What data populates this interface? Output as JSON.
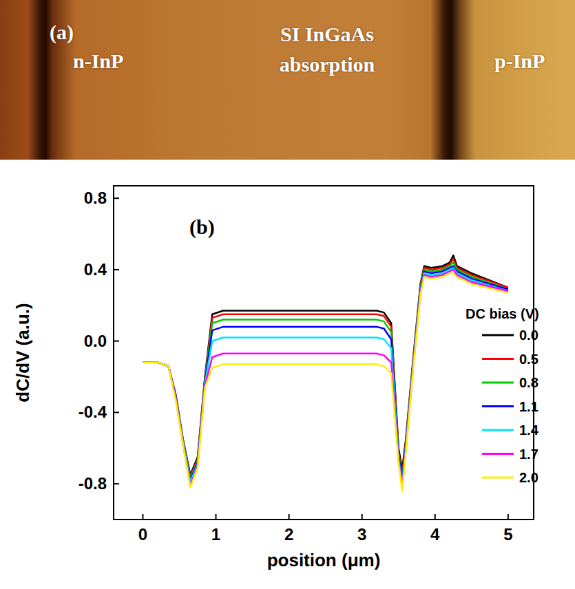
{
  "panel_a": {
    "label": "(a)",
    "regions": [
      "n-InP",
      "SI InGaAs absorption",
      "p-InP"
    ]
  },
  "chart_data": {
    "type": "line",
    "title": "(b)",
    "x_label": "position (μm)",
    "y_label": "dC/dV (a.u.)",
    "legend_title": "DC bias (V)",
    "legend": "right",
    "xlim": [
      -0.4,
      5.35
    ],
    "xticks": [
      0,
      1,
      2,
      3,
      4,
      5
    ],
    "ylim": [
      -1.0,
      0.87
    ],
    "yticks": [
      -0.8,
      -0.4,
      {
        "value": 0,
        "label": "0.0"
      },
      0.4,
      0.8
    ],
    "x": [
      0,
      0.2,
      0.35,
      0.45,
      0.55,
      0.65,
      0.75,
      0.85,
      0.95,
      1.1,
      1.5,
      2.0,
      2.5,
      3.0,
      3.2,
      3.3,
      3.4,
      3.5,
      3.55,
      3.6,
      3.7,
      3.8,
      3.85,
      3.95,
      4.1,
      4.2,
      4.25,
      4.3,
      4.5,
      5.0
    ],
    "series": [
      {
        "name": "0.0",
        "color": "#000000",
        "values": [
          -0.12,
          -0.12,
          -0.14,
          -0.3,
          -0.55,
          -0.75,
          -0.65,
          -0.2,
          0.15,
          0.17,
          0.17,
          0.17,
          0.17,
          0.17,
          0.17,
          0.16,
          0.1,
          -0.6,
          -0.72,
          -0.55,
          -0.1,
          0.32,
          0.42,
          0.41,
          0.42,
          0.44,
          0.48,
          0.42,
          0.38,
          0.3
        ]
      },
      {
        "name": "0.5",
        "color": "#ff0000",
        "values": [
          -0.12,
          -0.12,
          -0.14,
          -0.3,
          -0.56,
          -0.76,
          -0.66,
          -0.21,
          0.13,
          0.15,
          0.15,
          0.15,
          0.15,
          0.15,
          0.15,
          0.14,
          0.08,
          -0.62,
          -0.75,
          -0.57,
          -0.11,
          0.31,
          0.41,
          0.4,
          0.41,
          0.43,
          0.46,
          0.41,
          0.37,
          0.3
        ]
      },
      {
        "name": "0.8",
        "color": "#00cc00",
        "values": [
          -0.12,
          -0.12,
          -0.14,
          -0.31,
          -0.56,
          -0.77,
          -0.67,
          -0.22,
          0.1,
          0.12,
          0.12,
          0.12,
          0.12,
          0.12,
          0.12,
          0.11,
          0.05,
          -0.63,
          -0.77,
          -0.58,
          -0.12,
          0.3,
          0.4,
          0.39,
          0.4,
          0.42,
          0.44,
          0.4,
          0.36,
          0.29
        ]
      },
      {
        "name": "1.1",
        "color": "#0000ff",
        "values": [
          -0.12,
          -0.12,
          -0.14,
          -0.31,
          -0.57,
          -0.78,
          -0.68,
          -0.23,
          0.06,
          0.08,
          0.08,
          0.08,
          0.08,
          0.08,
          0.08,
          0.07,
          0.01,
          -0.64,
          -0.78,
          -0.59,
          -0.13,
          0.29,
          0.39,
          0.38,
          0.39,
          0.41,
          0.42,
          0.39,
          0.35,
          0.29
        ]
      },
      {
        "name": "1.4",
        "color": "#00e5ff",
        "values": [
          -0.12,
          -0.12,
          -0.14,
          -0.32,
          -0.57,
          -0.79,
          -0.69,
          -0.24,
          0.0,
          0.02,
          0.02,
          0.02,
          0.02,
          0.02,
          0.02,
          0.01,
          -0.04,
          -0.66,
          -0.8,
          -0.6,
          -0.14,
          0.28,
          0.38,
          0.37,
          0.38,
          0.4,
          0.41,
          0.38,
          0.34,
          0.28
        ]
      },
      {
        "name": "1.7",
        "color": "#ff00ff",
        "values": [
          -0.12,
          -0.12,
          -0.14,
          -0.32,
          -0.58,
          -0.81,
          -0.7,
          -0.25,
          -0.09,
          -0.07,
          -0.07,
          -0.07,
          -0.07,
          -0.07,
          -0.07,
          -0.08,
          -0.12,
          -0.67,
          -0.82,
          -0.61,
          -0.15,
          0.27,
          0.37,
          0.36,
          0.37,
          0.39,
          0.4,
          0.37,
          0.33,
          0.28
        ]
      },
      {
        "name": "2.0",
        "color": "#ffee00",
        "values": [
          -0.12,
          -0.12,
          -0.14,
          -0.33,
          -0.58,
          -0.82,
          -0.71,
          -0.26,
          -0.15,
          -0.13,
          -0.13,
          -0.13,
          -0.13,
          -0.13,
          -0.13,
          -0.14,
          -0.18,
          -0.68,
          -0.84,
          -0.62,
          -0.16,
          0.26,
          0.36,
          0.35,
          0.36,
          0.38,
          0.38,
          0.36,
          0.32,
          0.27
        ]
      }
    ]
  }
}
